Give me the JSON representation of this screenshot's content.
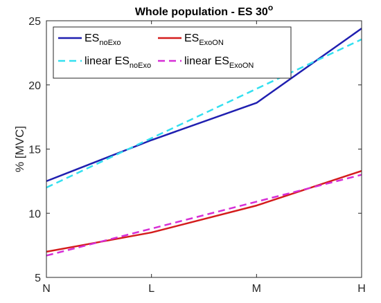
{
  "chart_data": {
    "type": "line",
    "title": "Whole population - ES 30",
    "title_superscript": "o",
    "xlabel": "",
    "ylabel": "% [MVC]",
    "categories": [
      "N",
      "L",
      "M",
      "H"
    ],
    "ylim": [
      5,
      25
    ],
    "yticks": [
      "5",
      "10",
      "15",
      "20",
      "25"
    ],
    "grid": false,
    "legend_position": "top-left, two columns",
    "series": [
      {
        "name": "ES",
        "name_sub": "noExo",
        "values": [
          12.5,
          15.7,
          18.6,
          24.4
        ],
        "color": "#1f1fb0",
        "style": "solid"
      },
      {
        "name": "ES",
        "name_sub": "ExoON",
        "values": [
          7.0,
          8.5,
          10.6,
          13.3
        ],
        "color": "#d41c1c",
        "style": "solid"
      },
      {
        "name": "linear ES",
        "name_sub": "noExo",
        "values": [
          12.0,
          15.85,
          19.7,
          23.55
        ],
        "color": "#33e0f0",
        "style": "dashed"
      },
      {
        "name": "linear ES",
        "name_sub": "ExoON",
        "values": [
          6.7,
          8.8,
          10.9,
          13.0
        ],
        "color": "#d62ed6",
        "style": "dashed"
      }
    ]
  }
}
